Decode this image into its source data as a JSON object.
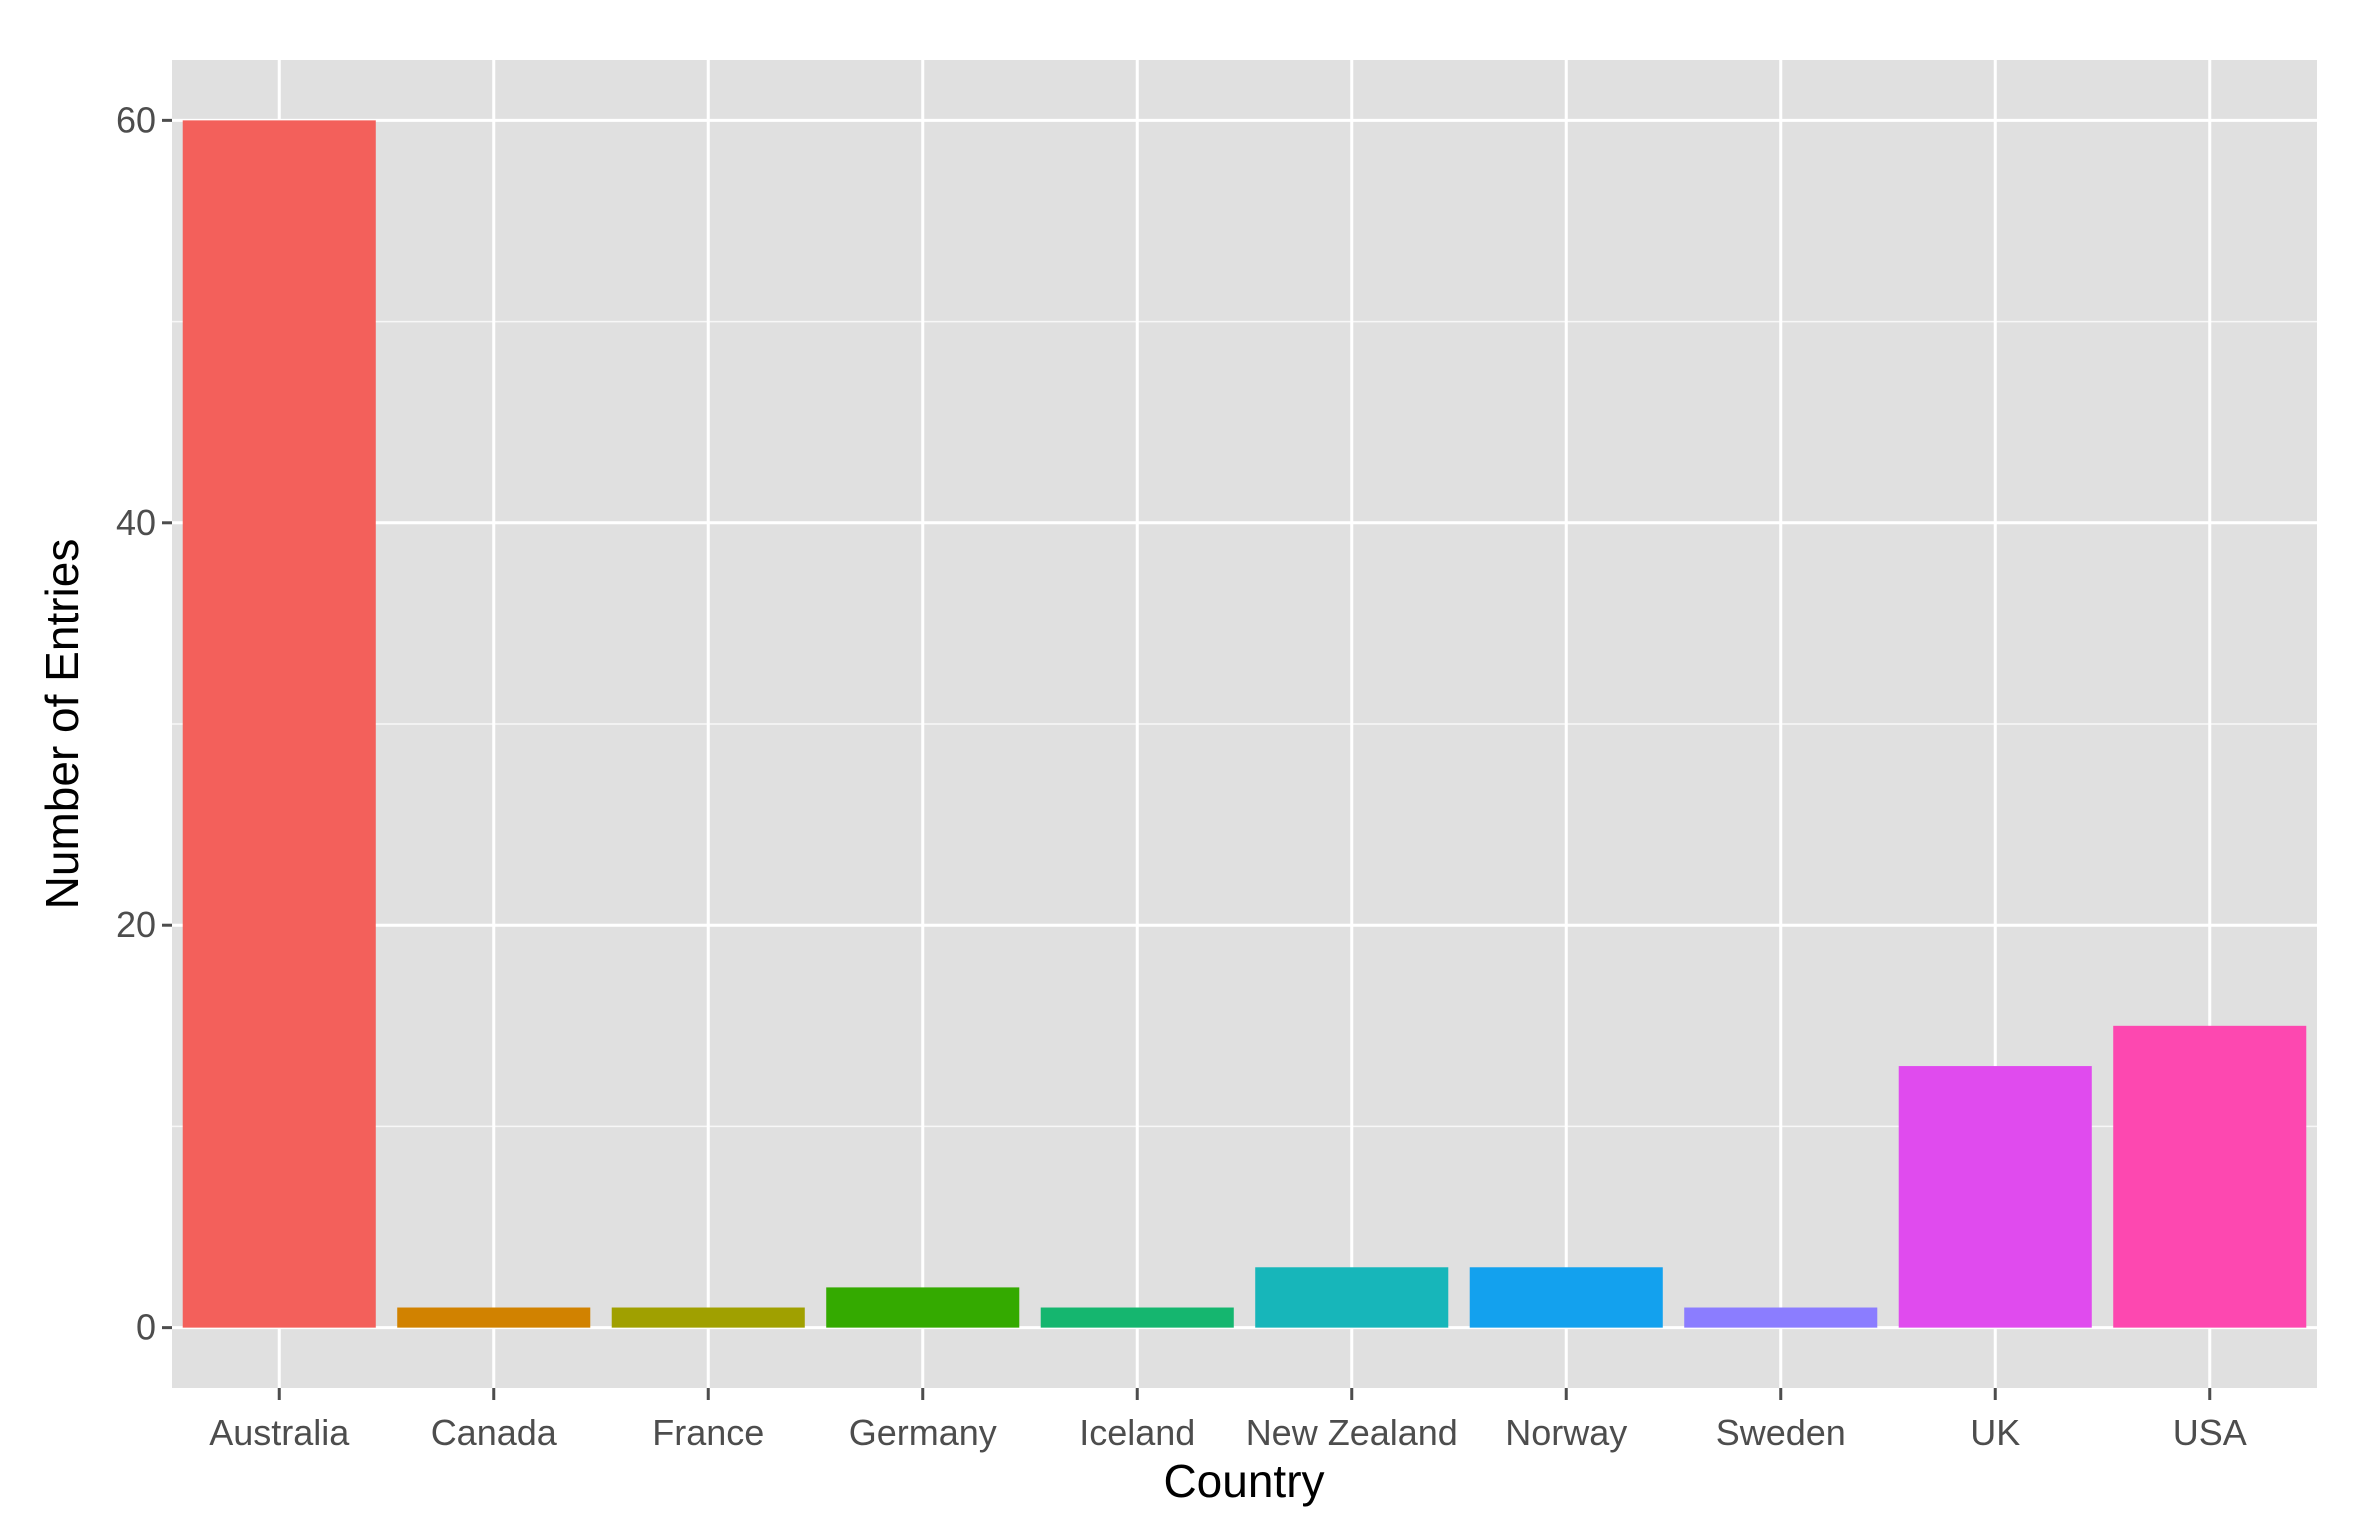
{
  "chart_data": {
    "type": "bar",
    "categories": [
      "Australia",
      "Canada",
      "France",
      "Germany",
      "Iceland",
      "New Zealand",
      "Norway",
      "Sweden",
      "UK",
      "USA"
    ],
    "values": [
      60,
      1,
      1,
      2,
      1,
      3,
      3,
      1,
      13,
      15
    ],
    "colors": [
      "#F3605B",
      "#D18200",
      "#A0A000",
      "#34AA00",
      "#15B66F",
      "#17B6BA",
      "#13A1EE",
      "#8B7DFF",
      "#E04BEE",
      "#FD48B0"
    ],
    "xlabel": "Country",
    "ylabel": "Number of Entries",
    "ylim": [
      -3,
      63
    ],
    "yticks": [
      0,
      20,
      40,
      60
    ],
    "grid": true,
    "legend": "none",
    "panel_background": "#E0E0E0",
    "grid_color": "#FFFFFF"
  }
}
